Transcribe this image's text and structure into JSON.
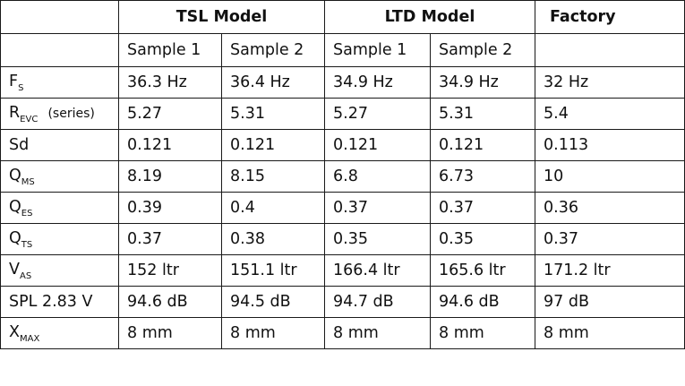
{
  "header": {
    "groups": [
      "TSL Model",
      "LTD Model",
      "Factory"
    ],
    "samples": [
      "Sample 1",
      "Sample 2",
      "Sample 1",
      "Sample 2",
      ""
    ]
  },
  "rows": [
    {
      "param": "F",
      "sub": "S",
      "note": "",
      "values": [
        "36.3 Hz",
        "36.4 Hz",
        "34.9 Hz",
        "34.9 Hz",
        "32 Hz"
      ]
    },
    {
      "param": "R",
      "sub": "EVC",
      "note": "(series)",
      "values": [
        "5.27",
        "5.31",
        "5.27",
        "5.31",
        "5.4"
      ]
    },
    {
      "param": "Sd",
      "sub": "",
      "note": "",
      "values": [
        "0.121",
        "0.121",
        "0.121",
        "0.121",
        "0.113"
      ]
    },
    {
      "param": "Q",
      "sub": "MS",
      "note": "",
      "values": [
        "8.19",
        "8.15",
        "6.8",
        "6.73",
        "10"
      ]
    },
    {
      "param": "Q",
      "sub": "ES",
      "note": "",
      "values": [
        "0.39",
        "0.4",
        "0.37",
        "0.37",
        "0.36"
      ]
    },
    {
      "param": "Q",
      "sub": "TS",
      "note": "",
      "values": [
        "0.37",
        "0.38",
        "0.35",
        "0.35",
        "0.37"
      ]
    },
    {
      "param": "V",
      "sub": "AS",
      "note": "",
      "values": [
        "152 ltr",
        "151.1 ltr",
        "166.4 ltr",
        "165.6 ltr",
        "171.2 ltr"
      ]
    },
    {
      "param": "SPL 2.83 V",
      "sub": "",
      "note": "",
      "values": [
        "94.6 dB",
        "94.5 dB",
        "94.7 dB",
        "94.6 dB",
        "97 dB"
      ]
    },
    {
      "param": "X",
      "sub": "MAX",
      "note": "",
      "values": [
        "8 mm",
        "8 mm",
        "8 mm",
        "8 mm",
        "8 mm"
      ]
    }
  ]
}
